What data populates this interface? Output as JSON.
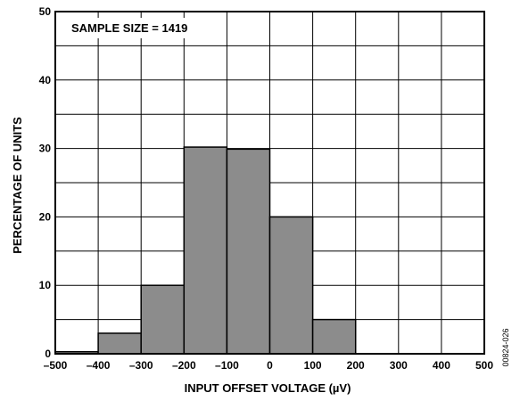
{
  "chart_data": {
    "type": "bar",
    "subtype": "histogram",
    "bins": [
      {
        "from": -500,
        "to": -400,
        "value": 0.3
      },
      {
        "from": -400,
        "to": -300,
        "value": 3
      },
      {
        "from": -300,
        "to": -200,
        "value": 10
      },
      {
        "from": -200,
        "to": -100,
        "value": 30.2
      },
      {
        "from": -100,
        "to": 0,
        "value": 29.9
      },
      {
        "from": 0,
        "to": 100,
        "value": 20
      },
      {
        "from": 100,
        "to": 200,
        "value": 5
      },
      {
        "from": 200,
        "to": 300,
        "value": 0
      },
      {
        "from": 300,
        "to": 400,
        "value": 0
      },
      {
        "from": 400,
        "to": 500,
        "value": 0
      }
    ],
    "xlabel": "INPUT OFFSET VOLTAGE (µV)",
    "ylabel": "PERCENTAGE OF UNITS",
    "xlim": [
      -500,
      500
    ],
    "ylim": [
      0,
      50
    ],
    "xticks": [
      "–500",
      "–400",
      "–300",
      "–200",
      "–100",
      "0",
      "100",
      "200",
      "300",
      "400",
      "500"
    ],
    "yticks": [
      "0",
      "10",
      "20",
      "30",
      "40",
      "50"
    ],
    "annotation": "SAMPLE SIZE = 1419",
    "figure_id": "00824-026",
    "grid": true,
    "colors": {
      "bar": "#8c8c8c",
      "edge": "#000000"
    }
  }
}
